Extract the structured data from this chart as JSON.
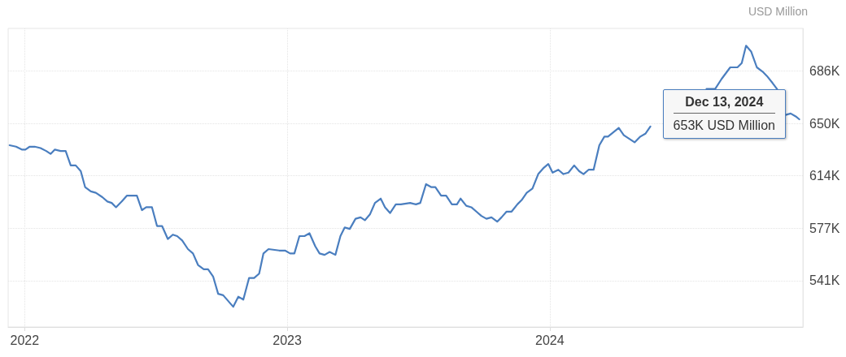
{
  "chart_data": {
    "type": "line",
    "ylabel": "USD Million",
    "x": [
      "2021-12-11",
      "2021-12-20",
      "2021-12-28",
      "2022-01-02",
      "2022-01-08",
      "2022-01-15",
      "2022-01-23",
      "2022-01-31",
      "2022-02-06",
      "2022-02-12",
      "2022-02-20",
      "2022-02-27",
      "2022-03-06",
      "2022-03-13",
      "2022-03-20",
      "2022-03-26",
      "2022-04-03",
      "2022-04-10",
      "2022-04-19",
      "2022-04-26",
      "2022-05-02",
      "2022-05-08",
      "2022-05-16",
      "2022-05-23",
      "2022-06-06",
      "2022-06-13",
      "2022-06-19",
      "2022-06-27",
      "2022-07-04",
      "2022-07-11",
      "2022-07-19",
      "2022-07-26",
      "2022-08-01",
      "2022-08-08",
      "2022-08-16",
      "2022-08-23",
      "2022-08-30",
      "2022-09-07",
      "2022-09-13",
      "2022-09-20",
      "2022-09-27",
      "2022-10-04",
      "2022-10-18",
      "2022-10-25",
      "2022-11-01",
      "2022-11-09",
      "2022-11-16",
      "2022-11-23",
      "2022-11-29",
      "2022-12-06",
      "2022-12-21",
      "2022-12-29",
      "2023-01-05",
      "2023-01-11",
      "2023-01-18",
      "2023-01-25",
      "2023-02-01",
      "2023-02-09",
      "2023-02-15",
      "2023-02-22",
      "2023-03-01",
      "2023-03-09",
      "2023-03-16",
      "2023-03-22",
      "2023-03-29",
      "2023-04-06",
      "2023-04-13",
      "2023-04-19",
      "2023-04-26",
      "2023-05-03",
      "2023-05-11",
      "2023-05-17",
      "2023-05-24",
      "2023-06-01",
      "2023-06-08",
      "2023-06-21",
      "2023-06-29",
      "2023-07-05",
      "2023-07-13",
      "2023-07-20",
      "2023-07-26",
      "2023-08-03",
      "2023-08-10",
      "2023-08-18",
      "2023-08-25",
      "2023-08-30",
      "2023-09-07",
      "2023-09-14",
      "2023-09-21",
      "2023-09-28",
      "2023-10-05",
      "2023-10-12",
      "2023-10-20",
      "2023-10-26",
      "2023-11-02",
      "2023-11-09",
      "2023-11-17",
      "2023-11-23",
      "2023-11-30",
      "2023-12-08",
      "2023-12-16",
      "2023-12-23",
      "2023-12-30",
      "2024-01-05",
      "2024-01-13",
      "2024-01-20",
      "2024-01-27",
      "2024-02-04",
      "2024-02-11",
      "2024-02-17",
      "2024-02-24",
      "2024-03-02",
      "2024-03-10",
      "2024-03-17",
      "2024-03-22",
      "2024-04-06",
      "2024-04-13",
      "2024-04-28",
      "2024-05-06",
      "2024-05-13",
      "2024-05-20",
      "2024-06-20",
      "2024-08-06",
      "2024-08-18",
      "2024-08-27",
      "2024-09-08",
      "2024-09-18",
      "2024-09-24",
      "2024-09-30",
      "2024-10-07",
      "2024-10-15",
      "2024-10-23",
      "2024-10-29",
      "2024-11-06",
      "2024-11-12",
      "2024-11-18",
      "2024-11-24",
      "2024-12-01",
      "2024-12-08",
      "2024-12-13"
    ],
    "values": [
      635000,
      634000,
      632000,
      632000,
      634000,
      634000,
      633000,
      631000,
      629000,
      632000,
      631000,
      631000,
      621000,
      621000,
      617000,
      606000,
      603000,
      602000,
      599000,
      596000,
      595000,
      592000,
      596000,
      600000,
      600000,
      590000,
      592000,
      592000,
      579000,
      579000,
      570000,
      573000,
      572000,
      569000,
      563000,
      560000,
      552000,
      549000,
      549000,
      544000,
      532000,
      531000,
      523000,
      530000,
      528000,
      543000,
      543000,
      546000,
      560000,
      563000,
      562000,
      562000,
      560000,
      560000,
      572000,
      572000,
      574000,
      565000,
      560000,
      559000,
      561000,
      559000,
      572000,
      578000,
      577000,
      584000,
      585000,
      583000,
      587000,
      595000,
      598000,
      592000,
      588000,
      594000,
      594000,
      595000,
      594000,
      595000,
      608000,
      606000,
      606000,
      600000,
      600000,
      594000,
      594000,
      598000,
      593000,
      592000,
      589000,
      586000,
      584000,
      585000,
      582000,
      585000,
      589000,
      589000,
      594000,
      597000,
      602000,
      605000,
      615000,
      619000,
      622000,
      616000,
      618000,
      615000,
      616000,
      621000,
      617000,
      615000,
      618000,
      618000,
      635000,
      641000,
      641000,
      647000,
      642000,
      637000,
      641000,
      643000,
      648000,
      null,
      674000,
      674000,
      681000,
      689000,
      689000,
      692000,
      704000,
      700000,
      689000,
      686000,
      683000,
      678000,
      674000,
      null,
      656000,
      657000,
      655000,
      653000
    ],
    "color": "#4a7ebf",
    "xlim": [
      "2021-12-09",
      "2024-12-18"
    ],
    "xticks": [
      "2022",
      "2023",
      "2024"
    ],
    "ylim": [
      509000,
      716000
    ],
    "yticks": [
      {
        "value": 541200,
        "label": "541K"
      },
      {
        "value": 577500,
        "label": "577K"
      },
      {
        "value": 613800,
        "label": "614K"
      },
      {
        "value": 650100,
        "label": "650K"
      },
      {
        "value": 686400,
        "label": "686K"
      }
    ],
    "grid": true,
    "line_style": "solid",
    "annotations": [
      {
        "text": "Dec 13, 2024",
        "x": "2024-12-13",
        "y": 653000
      },
      "653K USD Million"
    ]
  }
}
